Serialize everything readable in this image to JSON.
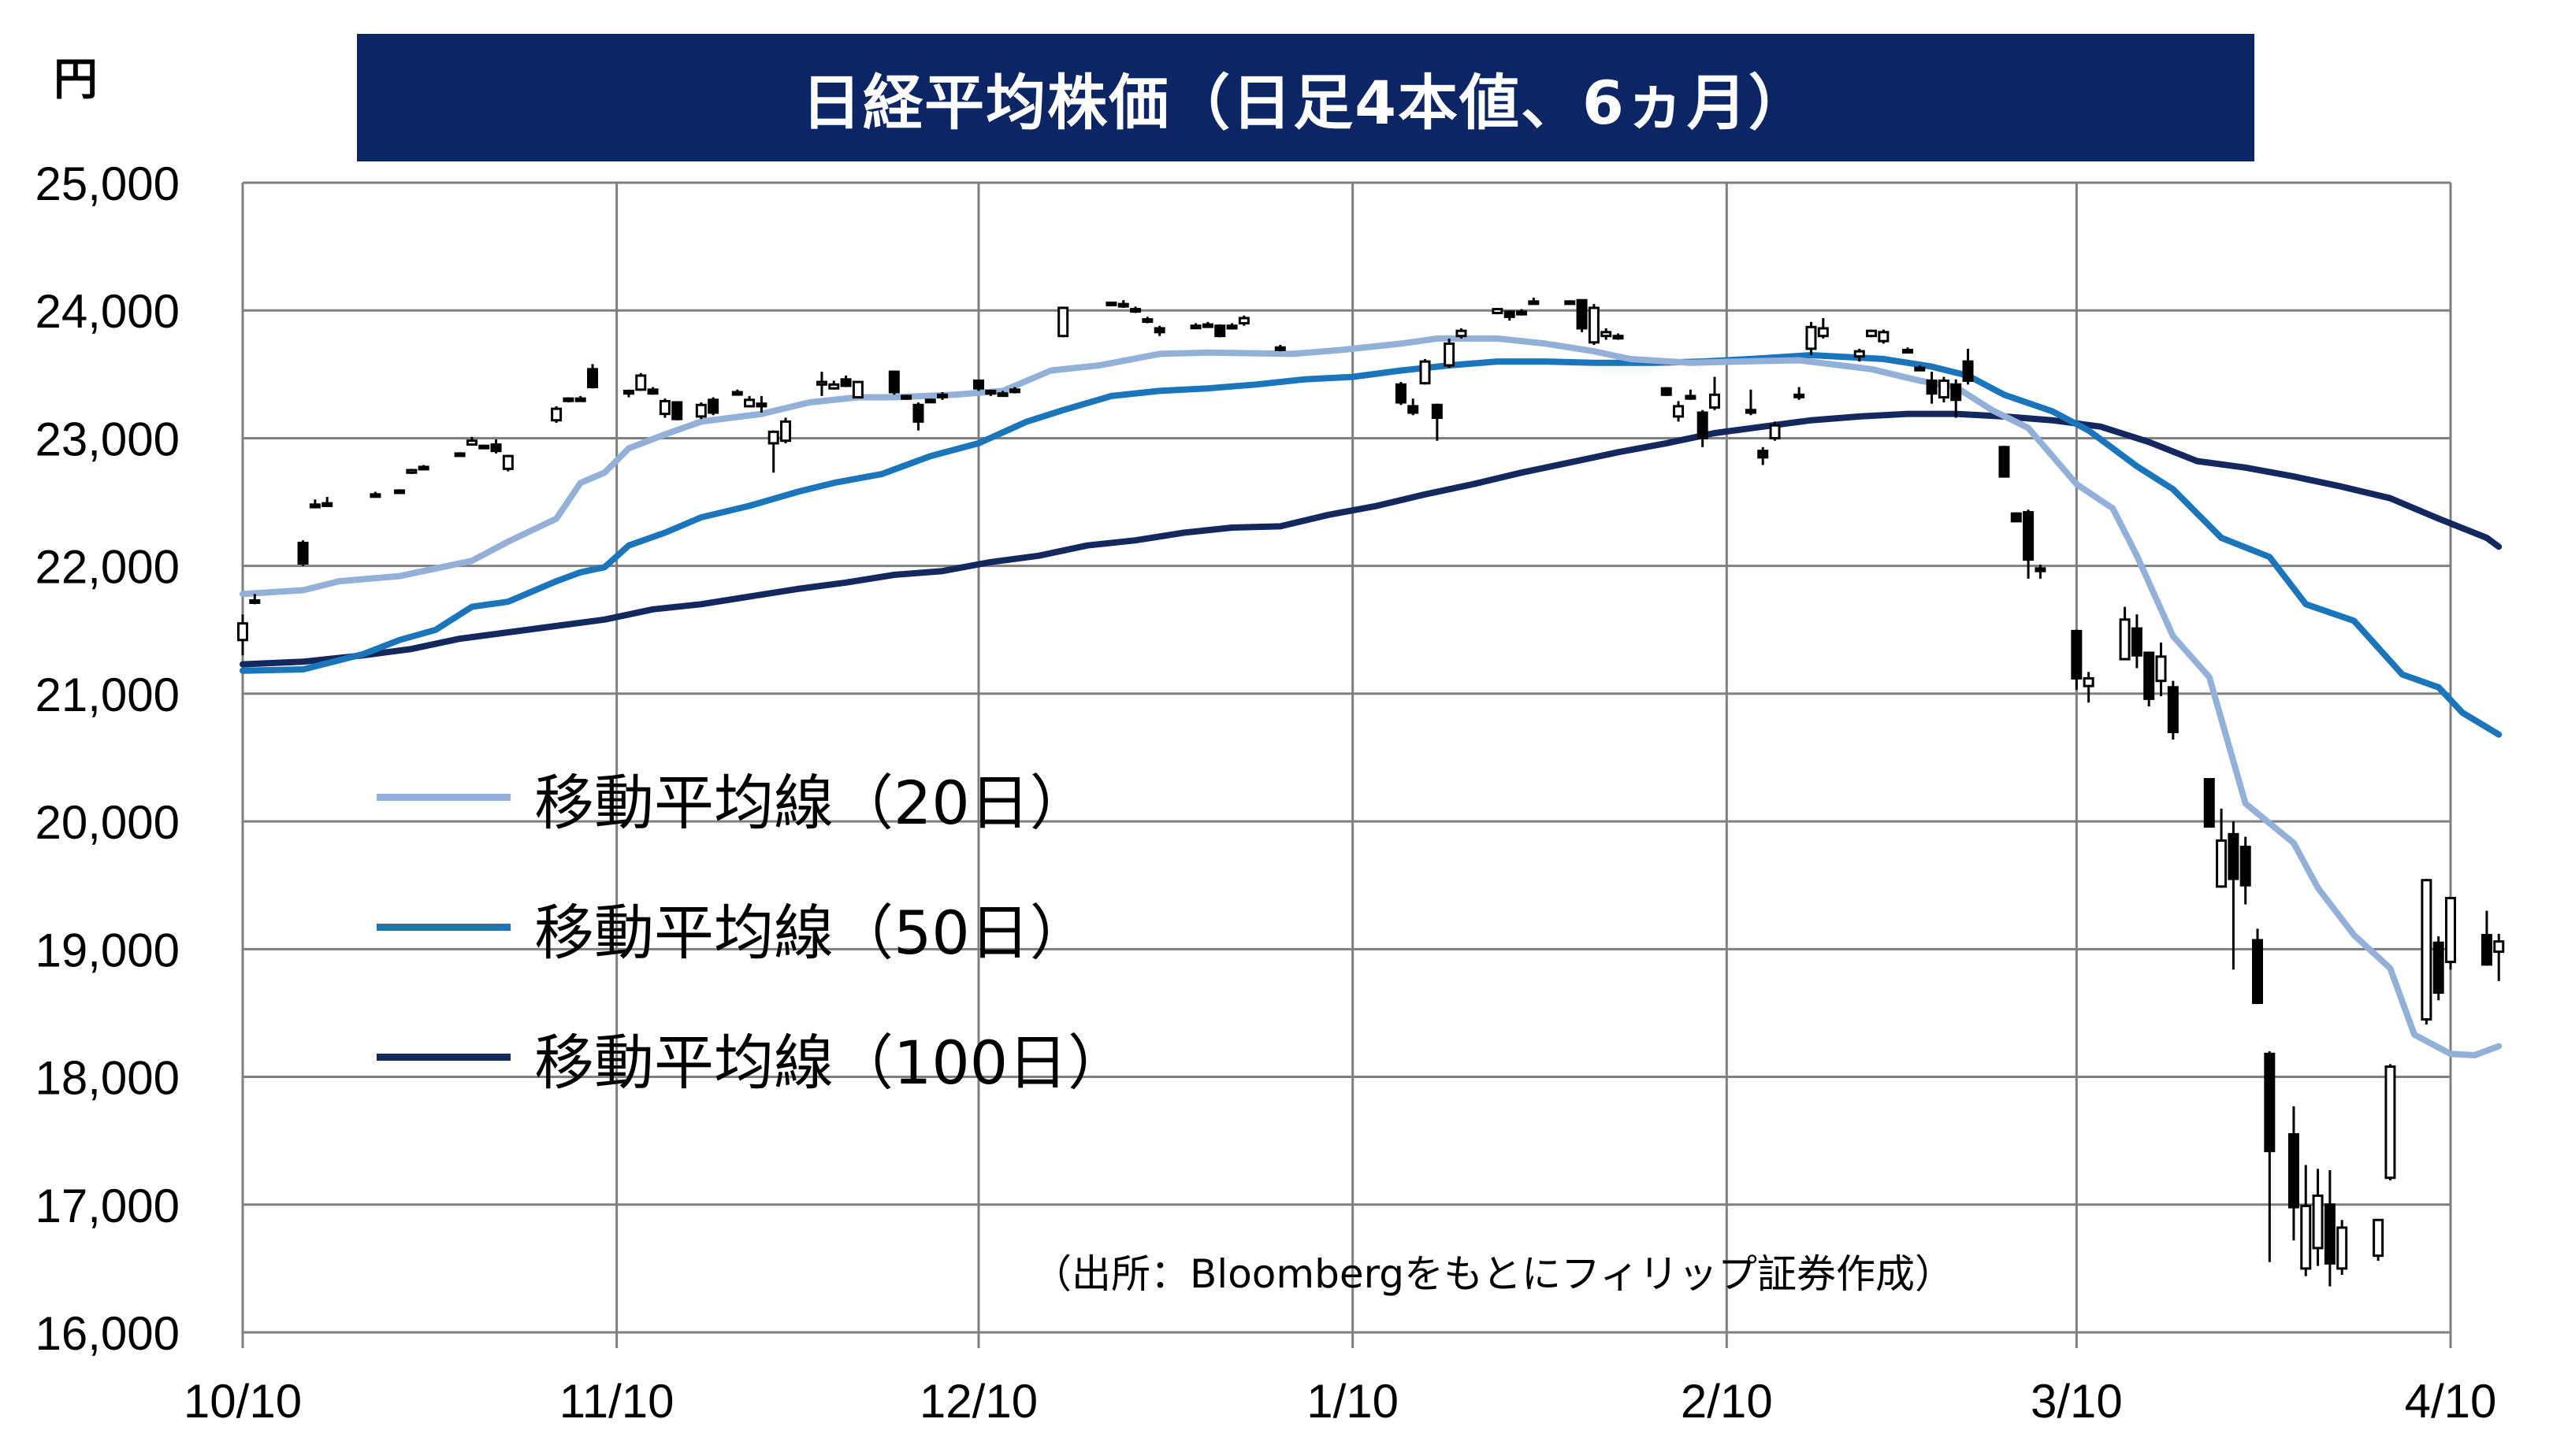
{
  "title": "日経平均株価（日足4本値、6ヵ月）",
  "unit": "円",
  "source": "（出所：Bloombergをもとにフィリップ証券作成）",
  "chart_data": {
    "type": "candlestick",
    "ylim": [
      16000,
      25000
    ],
    "y_ticks": [
      "25,000",
      "24,000",
      "23,000",
      "22,000",
      "21,000",
      "20,000",
      "19,000",
      "18,000",
      "17,000",
      "16,000"
    ],
    "x_ticks": [
      "10/10",
      "11/10",
      "12/10",
      "1/10",
      "2/10",
      "3/10",
      "4/10"
    ],
    "x_range_days": [
      0,
      183
    ],
    "x_tick_days": [
      0,
      31,
      61,
      92,
      123,
      152,
      183
    ],
    "grid": true,
    "colors": {
      "ma20": "#93b1d8",
      "ma50": "#1b75bb",
      "ma100": "#13285e",
      "grid": "#7f7f7f",
      "candle": "#000000"
    },
    "legend": [
      {
        "label": "移動平均線（20日）",
        "series": "ma20"
      },
      {
        "label": "移動平均線（50日）",
        "series": "ma50"
      },
      {
        "label": "移動平均線（100日）",
        "series": "ma100"
      }
    ],
    "moving_averages": {
      "ma20": [
        [
          0,
          21780
        ],
        [
          5,
          21810
        ],
        [
          8,
          21880
        ],
        [
          13,
          21920
        ],
        [
          16,
          21980
        ],
        [
          19,
          22040
        ],
        [
          22,
          22190
        ],
        [
          26,
          22370
        ],
        [
          28,
          22650
        ],
        [
          30,
          22730
        ],
        [
          32,
          22920
        ],
        [
          35,
          23030
        ],
        [
          38,
          23130
        ],
        [
          43,
          23190
        ],
        [
          47,
          23280
        ],
        [
          51,
          23320
        ],
        [
          54,
          23320
        ],
        [
          59,
          23340
        ],
        [
          63,
          23370
        ],
        [
          67,
          23530
        ],
        [
          71,
          23570
        ],
        [
          76,
          23660
        ],
        [
          80,
          23670
        ],
        [
          87,
          23660
        ],
        [
          91,
          23690
        ],
        [
          96,
          23740
        ],
        [
          99,
          23780
        ],
        [
          104,
          23780
        ],
        [
          108,
          23740
        ],
        [
          112,
          23680
        ],
        [
          115,
          23620
        ],
        [
          120,
          23590
        ],
        [
          124,
          23600
        ],
        [
          129,
          23610
        ],
        [
          135,
          23540
        ],
        [
          139,
          23450
        ],
        [
          142,
          23400
        ],
        [
          145,
          23220
        ],
        [
          148,
          23080
        ],
        [
          152,
          22640
        ],
        [
          155,
          22450
        ],
        [
          157,
          22080
        ],
        [
          160,
          21450
        ],
        [
          163,
          21130
        ],
        [
          166,
          20140
        ],
        [
          170,
          19830
        ],
        [
          172,
          19480
        ],
        [
          175,
          19110
        ],
        [
          178,
          18850
        ],
        [
          180,
          18330
        ],
        [
          183,
          18180
        ],
        [
          185,
          18170
        ],
        [
          187,
          18240
        ]
      ],
      "ma50": [
        [
          0,
          21180
        ],
        [
          5,
          21190
        ],
        [
          10,
          21310
        ],
        [
          13,
          21420
        ],
        [
          16,
          21500
        ],
        [
          19,
          21680
        ],
        [
          22,
          21720
        ],
        [
          26,
          21880
        ],
        [
          28,
          21950
        ],
        [
          30,
          21990
        ],
        [
          32,
          22160
        ],
        [
          35,
          22260
        ],
        [
          38,
          22380
        ],
        [
          42,
          22470
        ],
        [
          46,
          22580
        ],
        [
          49,
          22650
        ],
        [
          53,
          22720
        ],
        [
          57,
          22860
        ],
        [
          61,
          22960
        ],
        [
          65,
          23130
        ],
        [
          68,
          23220
        ],
        [
          72,
          23330
        ],
        [
          76,
          23370
        ],
        [
          80,
          23390
        ],
        [
          84,
          23420
        ],
        [
          88,
          23460
        ],
        [
          92,
          23480
        ],
        [
          96,
          23530
        ],
        [
          100,
          23570
        ],
        [
          104,
          23600
        ],
        [
          108,
          23600
        ],
        [
          112,
          23590
        ],
        [
          117,
          23590
        ],
        [
          121,
          23600
        ],
        [
          125,
          23620
        ],
        [
          130,
          23650
        ],
        [
          136,
          23620
        ],
        [
          140,
          23560
        ],
        [
          143,
          23490
        ],
        [
          146,
          23340
        ],
        [
          150,
          23210
        ],
        [
          153,
          23060
        ],
        [
          157,
          22780
        ],
        [
          160,
          22600
        ],
        [
          164,
          22220
        ],
        [
          168,
          22070
        ],
        [
          171,
          21700
        ],
        [
          175,
          21570
        ],
        [
          179,
          21150
        ],
        [
          182,
          21050
        ],
        [
          184,
          20850
        ],
        [
          187,
          20680
        ]
      ],
      "ma100": [
        [
          0,
          21230
        ],
        [
          5,
          21250
        ],
        [
          10,
          21300
        ],
        [
          14,
          21350
        ],
        [
          18,
          21430
        ],
        [
          22,
          21480
        ],
        [
          26,
          21530
        ],
        [
          30,
          21580
        ],
        [
          34,
          21660
        ],
        [
          38,
          21700
        ],
        [
          42,
          21760
        ],
        [
          46,
          21820
        ],
        [
          50,
          21870
        ],
        [
          54,
          21930
        ],
        [
          58,
          21960
        ],
        [
          62,
          22030
        ],
        [
          66,
          22080
        ],
        [
          70,
          22160
        ],
        [
          74,
          22200
        ],
        [
          78,
          22260
        ],
        [
          82,
          22300
        ],
        [
          86,
          22310
        ],
        [
          90,
          22400
        ],
        [
          94,
          22470
        ],
        [
          98,
          22560
        ],
        [
          102,
          22640
        ],
        [
          106,
          22730
        ],
        [
          110,
          22810
        ],
        [
          114,
          22890
        ],
        [
          118,
          22960
        ],
        [
          122,
          23040
        ],
        [
          126,
          23090
        ],
        [
          130,
          23140
        ],
        [
          134,
          23170
        ],
        [
          138,
          23190
        ],
        [
          142,
          23190
        ],
        [
          146,
          23170
        ],
        [
          150,
          23140
        ],
        [
          154,
          23090
        ],
        [
          158,
          22970
        ],
        [
          162,
          22820
        ],
        [
          166,
          22770
        ],
        [
          170,
          22700
        ],
        [
          174,
          22620
        ],
        [
          178,
          22530
        ],
        [
          182,
          22370
        ],
        [
          186,
          22220
        ],
        [
          187,
          22150
        ]
      ]
    },
    "candles": [
      [
        0,
        21300,
        21620,
        21420,
        21550
      ],
      [
        1,
        21700,
        21780,
        21720,
        21730
      ],
      [
        5,
        22000,
        22200,
        22180,
        22020
      ],
      [
        6,
        22450,
        22520,
        22480,
        22460
      ],
      [
        7,
        22480,
        22540,
        22490,
        22470
      ],
      [
        11,
        22540,
        22580,
        22560,
        22555
      ],
      [
        13,
        22590,
        22600,
        22590,
        22590
      ],
      [
        14,
        22720,
        22760,
        22730,
        22750
      ],
      [
        15,
        22760,
        22790,
        22770,
        22775
      ],
      [
        18,
        22870,
        22890,
        22880,
        22870
      ],
      [
        19,
        22950,
        23010,
        22950,
        22980
      ],
      [
        20,
        22930,
        22950,
        22940,
        22930
      ],
      [
        21,
        22880,
        22990,
        22950,
        22900
      ],
      [
        22,
        22740,
        22870,
        22760,
        22860
      ],
      [
        26,
        23120,
        23250,
        23140,
        23230
      ],
      [
        27,
        23280,
        23320,
        23300,
        23310
      ],
      [
        28,
        23290,
        23330,
        23310,
        23300
      ],
      [
        29,
        23390,
        23580,
        23540,
        23400
      ],
      [
        32,
        23320,
        23380,
        23370,
        23350
      ],
      [
        33,
        23370,
        23510,
        23380,
        23490
      ],
      [
        34,
        23340,
        23400,
        23380,
        23350
      ],
      [
        35,
        23160,
        23310,
        23190,
        23290
      ],
      [
        36,
        23140,
        23290,
        23280,
        23150
      ],
      [
        38,
        23150,
        23280,
        23170,
        23260
      ],
      [
        39,
        23180,
        23320,
        23300,
        23200
      ],
      [
        41,
        23340,
        23380,
        23360,
        23350
      ],
      [
        42,
        23240,
        23330,
        23250,
        23300
      ],
      [
        43,
        23200,
        23330,
        23270,
        23250
      ],
      [
        44,
        22730,
        23060,
        22960,
        23050
      ],
      [
        45,
        22960,
        23160,
        22980,
        23130
      ],
      [
        48,
        23330,
        23520,
        23420,
        23440
      ],
      [
        49,
        23380,
        23450,
        23390,
        23420
      ],
      [
        50,
        23400,
        23490,
        23460,
        23410
      ],
      [
        51,
        23320,
        23440,
        23320,
        23440
      ],
      [
        54,
        23340,
        23530,
        23520,
        23360
      ],
      [
        55,
        23300,
        23340,
        23330,
        23310
      ],
      [
        56,
        23060,
        23280,
        23260,
        23130
      ],
      [
        57,
        23280,
        23310,
        23300,
        23290
      ],
      [
        58,
        23300,
        23360,
        23330,
        23340
      ],
      [
        61,
        23370,
        23450,
        23450,
        23390
      ],
      [
        62,
        23330,
        23380,
        23370,
        23350
      ],
      [
        63,
        23340,
        23370,
        23350,
        23340
      ],
      [
        64,
        23350,
        23400,
        23380,
        23370
      ],
      [
        68,
        23790,
        24030,
        23800,
        24020
      ],
      [
        72,
        24050,
        24070,
        24060,
        24050
      ],
      [
        73,
        24020,
        24080,
        24040,
        24050
      ],
      [
        74,
        23980,
        24030,
        24000,
        24010
      ],
      [
        75,
        23900,
        23950,
        23920,
        23930
      ],
      [
        76,
        23800,
        23880,
        23860,
        23830
      ],
      [
        79,
        23860,
        23900,
        23880,
        23870
      ],
      [
        80,
        23880,
        23910,
        23890,
        23880
      ],
      [
        81,
        23790,
        23890,
        23880,
        23800
      ],
      [
        82,
        23850,
        23900,
        23880,
        23860
      ],
      [
        83,
        23880,
        23960,
        23900,
        23940
      ],
      [
        86,
        23680,
        23730,
        23710,
        23700
      ],
      [
        96,
        23260,
        23440,
        23420,
        23280
      ],
      [
        97,
        23180,
        23310,
        23250,
        23200
      ],
      [
        98,
        23420,
        23620,
        23430,
        23600
      ],
      [
        99,
        22980,
        23270,
        23260,
        23160
      ],
      [
        100,
        23550,
        23780,
        23570,
        23740
      ],
      [
        101,
        23780,
        23860,
        23800,
        23840
      ],
      [
        104,
        23970,
        24020,
        23980,
        24010
      ],
      [
        105,
        23920,
        24000,
        23990,
        23950
      ],
      [
        106,
        23960,
        24010,
        23990,
        23970
      ],
      [
        107,
        24050,
        24100,
        24060,
        24070
      ],
      [
        110,
        24060,
        24080,
        24070,
        24060
      ],
      [
        111,
        23830,
        24080,
        24080,
        23860
      ],
      [
        112,
        23730,
        24050,
        23750,
        24020
      ],
      [
        113,
        23770,
        23860,
        23800,
        23830
      ],
      [
        114,
        23770,
        23820,
        23790,
        23800
      ],
      [
        118,
        23330,
        23400,
        23390,
        23340
      ],
      [
        119,
        23130,
        23290,
        23170,
        23250
      ],
      [
        120,
        23300,
        23380,
        23330,
        23310
      ],
      [
        121,
        22930,
        23220,
        23200,
        23000
      ],
      [
        122,
        23220,
        23480,
        23240,
        23340
      ],
      [
        125,
        23180,
        23380,
        23220,
        23200
      ],
      [
        126,
        22790,
        22930,
        22900,
        22850
      ],
      [
        127,
        22980,
        23130,
        23000,
        23100
      ],
      [
        129,
        23300,
        23400,
        23330,
        23340
      ],
      [
        130,
        23650,
        23910,
        23700,
        23870
      ],
      [
        131,
        23780,
        23940,
        23800,
        23860
      ],
      [
        134,
        23600,
        23700,
        23640,
        23680
      ],
      [
        135,
        23790,
        23850,
        23800,
        23840
      ],
      [
        136,
        23740,
        23850,
        23760,
        23830
      ],
      [
        138,
        23670,
        23710,
        23690,
        23680
      ],
      [
        139,
        23530,
        23570,
        23550,
        23540
      ],
      [
        140,
        23270,
        23520,
        23450,
        23350
      ],
      [
        141,
        23280,
        23480,
        23320,
        23450
      ],
      [
        142,
        23160,
        23460,
        23420,
        23300
      ],
      [
        143,
        23420,
        23700,
        23600,
        23450
      ],
      [
        146,
        22860,
        22940,
        22930,
        22700
      ],
      [
        147,
        22380,
        22420,
        22410,
        22350
      ],
      [
        148,
        21900,
        22440,
        22420,
        22050
      ],
      [
        149,
        21900,
        22010,
        21980,
        21960
      ],
      [
        152,
        21030,
        21500,
        21490,
        21120
      ],
      [
        153,
        20930,
        21170,
        21060,
        21120
      ],
      [
        156,
        21280,
        21680,
        21270,
        21580
      ],
      [
        157,
        21200,
        21620,
        21510,
        21300
      ],
      [
        158,
        20900,
        21330,
        21320,
        20960
      ],
      [
        159,
        20980,
        21400,
        21100,
        21290
      ],
      [
        160,
        20640,
        21100,
        21050,
        20700
      ],
      [
        163,
        20000,
        20330,
        20330,
        19960
      ],
      [
        164,
        19480,
        20100,
        19490,
        19850
      ],
      [
        165,
        18840,
        20000,
        19900,
        19550
      ],
      [
        166,
        19350,
        19880,
        19800,
        19500
      ],
      [
        167,
        18570,
        19160,
        19070,
        18580
      ],
      [
        168,
        16550,
        18200,
        18180,
        17420
      ],
      [
        170,
        16720,
        17770,
        17550,
        16980
      ],
      [
        171,
        16440,
        17310,
        16500,
        16990
      ],
      [
        172,
        16520,
        17280,
        16660,
        17070
      ],
      [
        173,
        16360,
        17270,
        17000,
        16540
      ],
      [
        174,
        16450,
        16880,
        16500,
        16820
      ],
      [
        177,
        16560,
        16850,
        16600,
        16880
      ],
      [
        178,
        17190,
        18100,
        17210,
        18080
      ],
      [
        181,
        18410,
        19550,
        18450,
        19540
      ],
      [
        182,
        18600,
        19100,
        19050,
        18660
      ],
      [
        183,
        18840,
        19400,
        18900,
        19400
      ],
      [
        186,
        18870,
        19300,
        19110,
        18880
      ],
      [
        187,
        18750,
        19120,
        18980,
        19060
      ]
    ]
  }
}
